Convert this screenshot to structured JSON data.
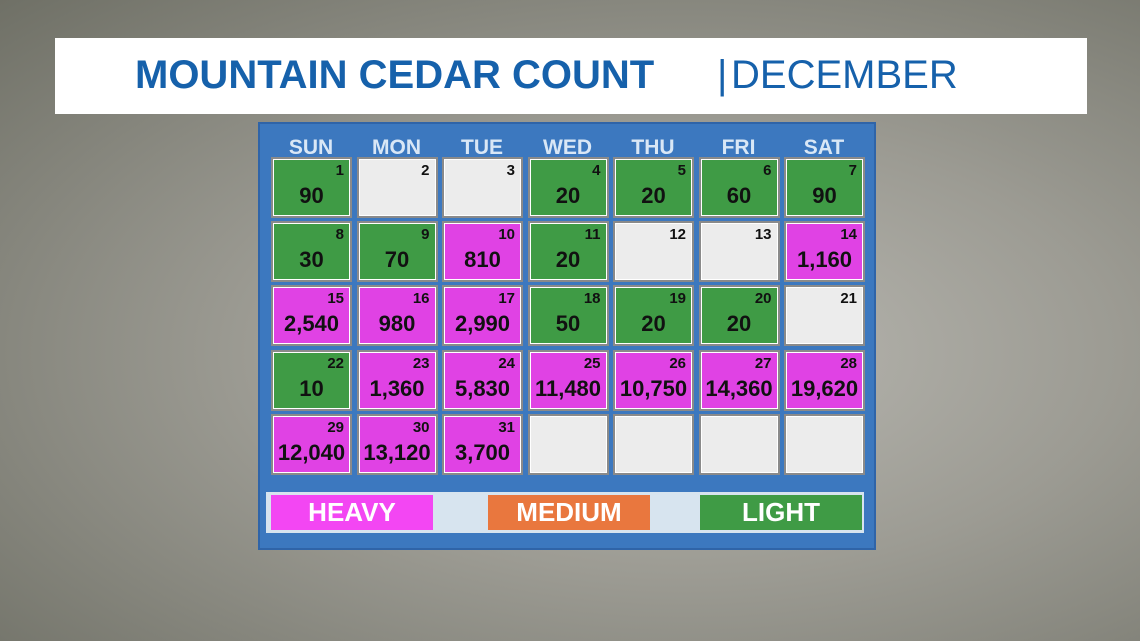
{
  "header": {
    "title": "MOUNTAIN CEDAR COUNT",
    "month": "DECEMBER"
  },
  "calendar": {
    "weekdays": [
      "SUN",
      "MON",
      "TUE",
      "WED",
      "THU",
      "FRI",
      "SAT"
    ],
    "weeks": [
      [
        {
          "day": 1,
          "count": "90",
          "color": "#3f9b45"
        },
        {
          "day": 2,
          "color": "#ececec"
        },
        {
          "day": 3,
          "color": "#ececec"
        },
        {
          "day": 4,
          "count": "20",
          "color": "#3f9b45"
        },
        {
          "day": 5,
          "count": "20",
          "color": "#3f9b45"
        },
        {
          "day": 6,
          "count": "60",
          "color": "#3f9b45"
        },
        {
          "day": 7,
          "count": "90",
          "color": "#3f9b45"
        }
      ],
      [
        {
          "day": 8,
          "count": "30",
          "color": "#3f9b45"
        },
        {
          "day": 9,
          "count": "70",
          "color": "#3f9b45"
        },
        {
          "day": 10,
          "count": "810",
          "color": "#e042e4"
        },
        {
          "day": 11,
          "count": "20",
          "color": "#3f9b45"
        },
        {
          "day": 12,
          "color": "#ececec"
        },
        {
          "day": 13,
          "color": "#ececec"
        },
        {
          "day": 14,
          "count": "1,160",
          "color": "#e042e4"
        }
      ],
      [
        {
          "day": 15,
          "count": "2,540",
          "color": "#e042e4"
        },
        {
          "day": 16,
          "count": "980",
          "color": "#e042e4"
        },
        {
          "day": 17,
          "count": "2,990",
          "color": "#e042e4"
        },
        {
          "day": 18,
          "count": "50",
          "color": "#3f9b45"
        },
        {
          "day": 19,
          "count": "20",
          "color": "#3f9b45"
        },
        {
          "day": 20,
          "count": "20",
          "color": "#3f9b45"
        },
        {
          "day": 21,
          "color": "#ececec"
        }
      ],
      [
        {
          "day": 22,
          "count": "10",
          "color": "#3f9b45"
        },
        {
          "day": 23,
          "count": "1,360",
          "color": "#e042e4"
        },
        {
          "day": 24,
          "count": "5,830",
          "color": "#e042e4"
        },
        {
          "day": 25,
          "count": "11,480",
          "color": "#e042e4"
        },
        {
          "day": 26,
          "count": "10,750",
          "color": "#e042e4"
        },
        {
          "day": 27,
          "count": "14,360",
          "color": "#e042e4"
        },
        {
          "day": 28,
          "count": "19,620",
          "color": "#e042e4"
        }
      ],
      [
        {
          "day": 29,
          "count": "12,040",
          "color": "#e042e4"
        },
        {
          "day": 30,
          "count": "13,120",
          "color": "#e042e4"
        },
        {
          "day": 31,
          "count": "3,700",
          "color": "#e042e4"
        },
        null,
        null,
        null,
        null
      ]
    ]
  },
  "legend": [
    {
      "label": "HEAVY",
      "color": "#f346f3"
    },
    {
      "label": "MEDIUM",
      "color": "#e9773e"
    },
    {
      "label": "LIGHT",
      "color": "#3f9b45"
    }
  ]
}
